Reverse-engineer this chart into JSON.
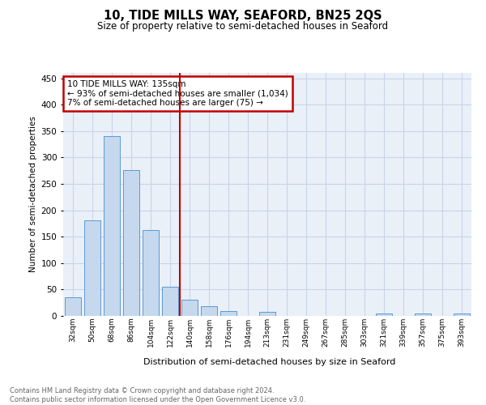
{
  "title": "10, TIDE MILLS WAY, SEAFORD, BN25 2QS",
  "subtitle": "Size of property relative to semi-detached houses in Seaford",
  "xlabel": "Distribution of semi-detached houses by size in Seaford",
  "ylabel": "Number of semi-detached properties",
  "categories": [
    "32sqm",
    "50sqm",
    "68sqm",
    "86sqm",
    "104sqm",
    "122sqm",
    "140sqm",
    "158sqm",
    "176sqm",
    "194sqm",
    "213sqm",
    "231sqm",
    "249sqm",
    "267sqm",
    "285sqm",
    "303sqm",
    "321sqm",
    "339sqm",
    "357sqm",
    "375sqm",
    "393sqm"
  ],
  "values": [
    36,
    181,
    340,
    276,
    163,
    55,
    30,
    19,
    9,
    0,
    8,
    0,
    0,
    0,
    0,
    0,
    4,
    0,
    4,
    0,
    4
  ],
  "bar_color": "#c5d8ed",
  "bar_edge_color": "#5b9bd5",
  "vline_color": "#c00000",
  "annotation_text": "10 TIDE MILLS WAY: 135sqm\n← 93% of semi-detached houses are smaller (1,034)\n7% of semi-detached houses are larger (75) →",
  "annotation_box_color": "#c00000",
  "footer_line1": "Contains HM Land Registry data © Crown copyright and database right 2024.",
  "footer_line2": "Contains public sector information licensed under the Open Government Licence v3.0.",
  "ylim": [
    0,
    460
  ],
  "yticks": [
    0,
    50,
    100,
    150,
    200,
    250,
    300,
    350,
    400,
    450
  ],
  "background_color": "#ffffff",
  "plot_bg_color": "#eaf0f8",
  "grid_color": "#c8d4e8",
  "vline_index": 6
}
